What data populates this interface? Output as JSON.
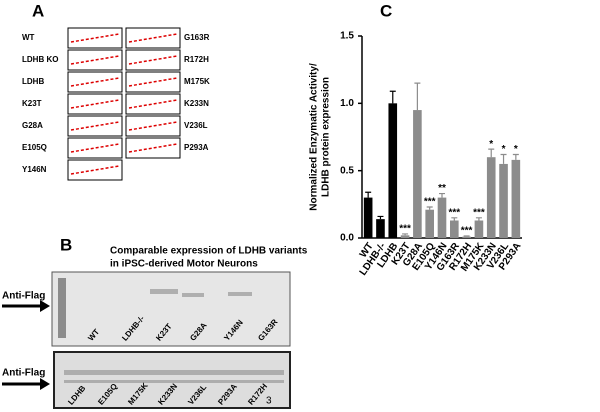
{
  "panel_a": {
    "label": "A",
    "left_labels": [
      "WT",
      "LDHB KO",
      "LDHB",
      "K23T",
      "G28A",
      "E105Q",
      "Y146N"
    ],
    "right_labels": [
      "G163R",
      "R172H",
      "M175K",
      "K233N",
      "V236L",
      "P293A"
    ]
  },
  "panel_b": {
    "label": "B",
    "title": [
      "Comparable expression of LDHB variants",
      "in iPSC-derived Motor Neurons"
    ],
    "blot_1": {
      "antibody": "Anti-Flag",
      "lanes": [
        "WT",
        "LDHB-/-",
        "K23T",
        "G28A",
        "Y146N",
        "G163R"
      ]
    },
    "blot_2": {
      "antibody": "Anti-Flag",
      "lanes": [
        "LDHB",
        "E105Q",
        "M175K",
        "K233N",
        "V236L",
        "P293A",
        "R172H"
      ],
      "corner_number": "3"
    }
  },
  "chart_data": {
    "type": "bar",
    "panel_label": "C",
    "y_label": [
      "Normalized Enzymatic Activity/",
      "LDHB protein expression"
    ],
    "categories": [
      "WT",
      "LDHB-/-",
      "LDHB",
      "K23T",
      "G28A",
      "E105Q",
      "Y146N",
      "G163R",
      "R172H",
      "M175K",
      "K233N",
      "V236L",
      "P293A"
    ],
    "values": [
      0.3,
      0.14,
      1.0,
      0.02,
      0.95,
      0.21,
      0.3,
      0.13,
      0.01,
      0.13,
      0.6,
      0.55,
      0.58
    ],
    "errors": [
      0.04,
      0.02,
      0.09,
      0.01,
      0.2,
      0.02,
      0.03,
      0.02,
      0.005,
      0.02,
      0.06,
      0.07,
      0.04
    ],
    "significance": [
      null,
      null,
      null,
      "***",
      null,
      "***",
      "**",
      "***",
      "***",
      "***",
      "*",
      "*",
      "*"
    ],
    "colors": [
      "#000000",
      "#000000",
      "#000000",
      "#8c8c8c",
      "#8c8c8c",
      "#8c8c8c",
      "#8c8c8c",
      "#8c8c8c",
      "#8c8c8c",
      "#8c8c8c",
      "#8c8c8c",
      "#8c8c8c",
      "#8c8c8c"
    ],
    "ylim": [
      0,
      1.5
    ],
    "yticks": [
      {
        "value": 0,
        "label": "0.0"
      },
      0.5,
      {
        "value": 1,
        "label": "1.0"
      },
      1.5
    ]
  }
}
